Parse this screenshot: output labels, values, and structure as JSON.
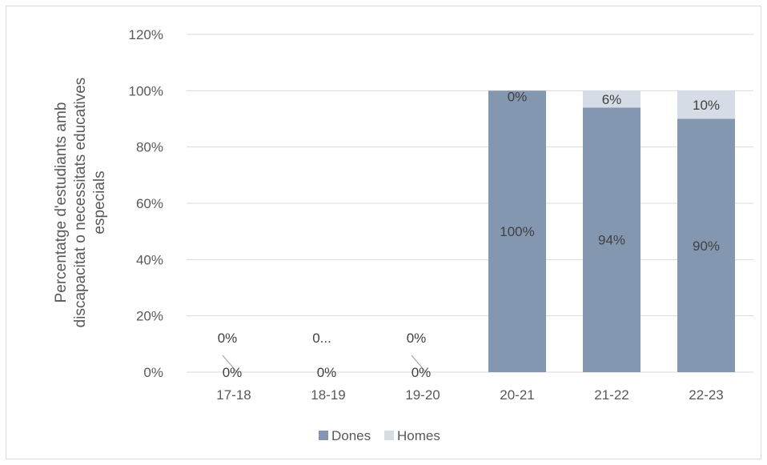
{
  "chart_data": {
    "type": "bar",
    "stacked": true,
    "categories": [
      "17-18",
      "18-19",
      "19-20",
      "20-21",
      "21-22",
      "22-23"
    ],
    "series": [
      {
        "name": "Dones",
        "color": "#8497b0",
        "values": [
          0,
          0,
          0,
          100,
          94,
          90
        ],
        "labels": [
          "0%",
          "0%",
          "0%",
          "100%",
          "94%",
          "90%"
        ]
      },
      {
        "name": "Homes",
        "color": "#d6dce5",
        "values": [
          0,
          0,
          0,
          0,
          6,
          10
        ],
        "labels": [
          "0%",
          "0...",
          "0%",
          "0%",
          "6%",
          "10%"
        ]
      }
    ],
    "ylabel": "Percentatge d'estudiants amb discapacitat o necessitats educatives especials",
    "ylabel_lines": [
      "Percentatge d'estudiants amb",
      "discapacitat o necessitats educatives",
      "especials"
    ],
    "ylim": [
      0,
      120
    ],
    "yticks": [
      0,
      20,
      40,
      60,
      80,
      100,
      120
    ],
    "ytick_labels": [
      "0%",
      "20%",
      "40%",
      "60%",
      "80%",
      "100%",
      "120%"
    ],
    "grid": true,
    "legend_position": "bottom",
    "gridline_color": "#d9d9d9"
  }
}
